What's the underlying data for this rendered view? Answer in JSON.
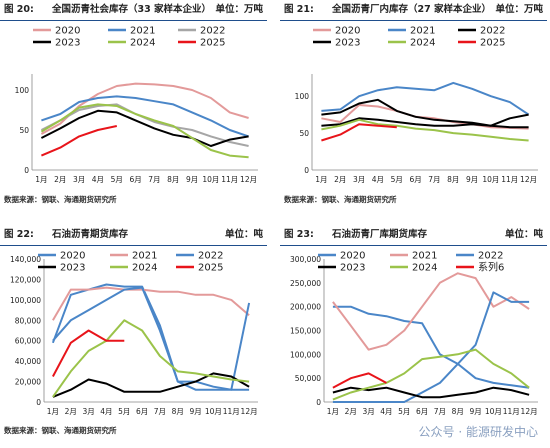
{
  "panels": [
    {
      "num": "图  20:",
      "title": "全国沥青社会库存（33 家样本企业）",
      "unit": "单位：万吨",
      "source": "数据来源：钢联、海通期货研究所"
    },
    {
      "num": "图  21:",
      "title": "全国沥青厂内库存（27 家样本企业）",
      "unit": "单位：万吨",
      "source": "数据来源：钢联、海通期货研究所"
    },
    {
      "num": "图  22:",
      "title": "石油沥青期货库存",
      "unit": "单位：吨",
      "source": "数据来源：钢联、海通期货研究所"
    },
    {
      "num": "图  23:",
      "title": "石油沥青厂库期货库存",
      "unit": "单位：吨",
      "source": "数据来源：钢联、海通期货研究所"
    }
  ],
  "footer": "公众号 · 能源研发中心",
  "chart_data": [
    {
      "type": "line",
      "x": [
        "1月",
        "2月",
        "3月",
        "4月",
        "5月",
        "6月",
        "7月",
        "8月",
        "9月",
        "10月",
        "11月",
        "12月"
      ],
      "ylim": [
        0,
        120
      ],
      "yticks": [
        0,
        50,
        100
      ],
      "legend_ncol": 3,
      "series": [
        {
          "name": "2020",
          "color": "#e39a9a",
          "values": [
            45,
            58,
            80,
            95,
            105,
            108,
            107,
            105,
            100,
            90,
            72,
            65
          ]
        },
        {
          "name": "2021",
          "color": "#4a86c8",
          "values": [
            62,
            70,
            85,
            90,
            92,
            90,
            86,
            82,
            72,
            62,
            50,
            42
          ]
        },
        {
          "name": "2022",
          "color": "#a6a6a6",
          "values": [
            50,
            62,
            75,
            80,
            82,
            70,
            60,
            54,
            50,
            42,
            35,
            30
          ]
        },
        {
          "name": "2023",
          "color": "#000000",
          "values": [
            40,
            52,
            65,
            74,
            72,
            62,
            52,
            44,
            40,
            30,
            38,
            42
          ]
        },
        {
          "name": "2024",
          "color": "#9bc34a",
          "values": [
            48,
            62,
            78,
            82,
            80,
            70,
            62,
            55,
            40,
            25,
            18,
            16
          ]
        },
        {
          "name": "2025",
          "color": "#e8141a",
          "values": [
            18,
            28,
            42,
            50,
            55,
            null,
            null,
            null,
            null,
            null,
            null,
            null
          ]
        }
      ]
    },
    {
      "type": "line",
      "x": [
        "1月",
        "2月",
        "3月",
        "4月",
        "5月",
        "6月",
        "7月",
        "8月",
        "9月",
        "10月",
        "11月",
        "12月"
      ],
      "ylim": [
        0,
        130
      ],
      "yticks": [
        0,
        50,
        100
      ],
      "legend_ncol": 3,
      "series": [
        {
          "name": "2020",
          "color": "#e39a9a",
          "values": [
            70,
            65,
            88,
            86,
            80,
            72,
            70,
            65,
            62,
            58,
            57,
            56
          ]
        },
        {
          "name": "2021",
          "color": "#4a86c8",
          "values": [
            80,
            82,
            100,
            108,
            112,
            110,
            108,
            118,
            110,
            100,
            92,
            75
          ]
        },
        {
          "name": "2022",
          "color": "#000000",
          "values": [
            75,
            78,
            90,
            95,
            80,
            72,
            68,
            66,
            64,
            60,
            70,
            75
          ]
        },
        {
          "name": "2023",
          "color": "#000000",
          "values": [
            60,
            62,
            70,
            68,
            65,
            62,
            60,
            60,
            62,
            60,
            58,
            58
          ]
        },
        {
          "name": "2024",
          "color": "#9bc34a",
          "values": [
            55,
            60,
            68,
            62,
            60,
            56,
            54,
            50,
            48,
            45,
            42,
            40
          ]
        },
        {
          "name": "2025",
          "color": "#e8141a",
          "values": [
            40,
            48,
            62,
            60,
            58,
            null,
            null,
            null,
            null,
            null,
            null,
            null
          ]
        }
      ]
    },
    {
      "type": "line",
      "x": [
        "1月",
        "2月",
        "3月",
        "4月",
        "5月",
        "6月",
        "7月",
        "8月",
        "9月",
        "10月",
        "11月",
        "12月"
      ],
      "ylim": [
        0,
        140000
      ],
      "yticks": [
        0,
        20000,
        40000,
        60000,
        80000,
        100000,
        120000,
        140000
      ],
      "legend_ncol": 3,
      "series": [
        {
          "name": "2020",
          "color": "#4a86c8",
          "values": [
            58000,
            105000,
            110000,
            115000,
            113000,
            113000,
            75000,
            20000,
            20000,
            15000,
            12000,
            12000
          ]
        },
        {
          "name": "2021",
          "color": "#e39a9a",
          "values": [
            80000,
            110000,
            110000,
            112000,
            110000,
            110000,
            108000,
            108000,
            105000,
            105000,
            100000,
            85000
          ]
        },
        {
          "name": "2022",
          "color": "#4a86c8",
          "values": [
            60000,
            80000,
            90000,
            100000,
            110000,
            112000,
            70000,
            20000,
            12000,
            12000,
            12000,
            97000
          ]
        },
        {
          "name": "2023",
          "color": "#000000",
          "values": [
            5000,
            12000,
            22000,
            18000,
            10000,
            10000,
            10000,
            15000,
            20000,
            28000,
            25000,
            15000
          ]
        },
        {
          "name": "2024",
          "color": "#9bc34a",
          "values": [
            5000,
            30000,
            50000,
            60000,
            80000,
            70000,
            45000,
            30000,
            28000,
            25000,
            22000,
            20000
          ]
        },
        {
          "name": "2025",
          "color": "#e8141a",
          "values": [
            25000,
            58000,
            70000,
            60000,
            60000,
            null,
            null,
            null,
            null,
            null,
            null,
            null
          ]
        }
      ]
    },
    {
      "type": "line",
      "x": [
        "1月",
        "2月",
        "3月",
        "4月",
        "5月",
        "6月",
        "7月",
        "8月",
        "9月",
        "10月",
        "11月",
        "12月"
      ],
      "ylim": [
        0,
        300000
      ],
      "yticks": [
        0,
        50000,
        100000,
        150000,
        200000,
        250000,
        300000
      ],
      "legend_ncol": 3,
      "series": [
        {
          "name": "2020",
          "color": "#4a86c8",
          "values": [
            200000,
            200000,
            185000,
            180000,
            170000,
            165000,
            100000,
            80000,
            50000,
            40000,
            35000,
            30000
          ]
        },
        {
          "name": "2021",
          "color": "#e39a9a",
          "values": [
            210000,
            160000,
            110000,
            120000,
            150000,
            200000,
            250000,
            270000,
            260000,
            200000,
            220000,
            195000
          ]
        },
        {
          "name": "2022",
          "color": "#4a86c8",
          "values": [
            0,
            0,
            0,
            0,
            0,
            20000,
            40000,
            80000,
            120000,
            230000,
            210000,
            210000
          ]
        },
        {
          "name": "2023",
          "color": "#000000",
          "values": [
            20000,
            30000,
            25000,
            30000,
            20000,
            10000,
            10000,
            15000,
            20000,
            30000,
            25000,
            15000
          ]
        },
        {
          "name": "2024",
          "color": "#9bc34a",
          "values": [
            5000,
            20000,
            30000,
            40000,
            60000,
            90000,
            95000,
            100000,
            110000,
            80000,
            60000,
            30000
          ]
        },
        {
          "name": "系列6",
          "color": "#e8141a",
          "values": [
            30000,
            50000,
            60000,
            40000,
            null,
            null,
            null,
            null,
            null,
            null,
            null,
            null
          ]
        }
      ]
    }
  ]
}
